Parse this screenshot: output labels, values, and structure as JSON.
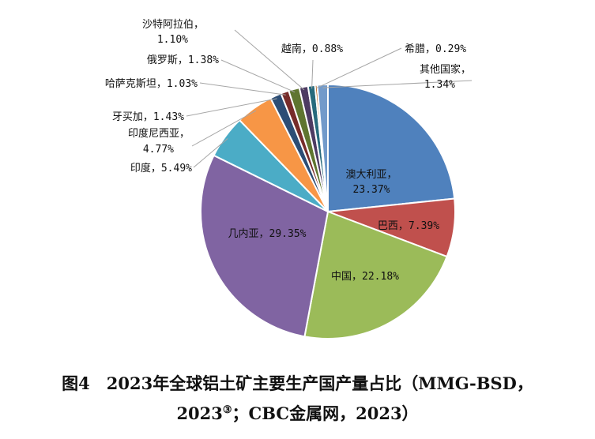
{
  "chart_data": {
    "type": "pie",
    "title": "图4　2023年全球铝土矿主要生产国产量占比（MMG-BSD，",
    "title_line2": "2023",
    "title_sup": "③",
    "title_line2_end": "；CBC金属网，2023）",
    "slices": [
      {
        "label": "澳大利亚，",
        "value": 23.37,
        "value_text": "23.37%",
        "color": "#4f81bd"
      },
      {
        "label": "巴西，",
        "value": 7.39,
        "value_text": "7.39%",
        "color": "#c0504d"
      },
      {
        "label": "中国，",
        "value": 22.18,
        "value_text": "22.18%",
        "color": "#9bbb59"
      },
      {
        "label": "几内亚，",
        "value": 29.35,
        "value_text": "29.35%",
        "color": "#8064a2"
      },
      {
        "label": "印度，",
        "value": 5.49,
        "value_text": "5.49%",
        "color": "#4bacc6"
      },
      {
        "label": "印度尼西亚，",
        "value": 4.77,
        "value_text": "4.77%",
        "color": "#f79646"
      },
      {
        "label": "牙买加，",
        "value": 1.43,
        "value_text": "1.43%",
        "color": "#2c4d75"
      },
      {
        "label": "哈萨克斯坦，",
        "value": 1.03,
        "value_text": "1.03%",
        "color": "#772c2a"
      },
      {
        "label": "俄罗斯，",
        "value": 1.38,
        "value_text": "1.38%",
        "color": "#5f7530"
      },
      {
        "label": "沙特阿拉伯，",
        "value": 1.1,
        "value_text": "1.10%",
        "color": "#4d3b62"
      },
      {
        "label": "越南，",
        "value": 0.88,
        "value_text": "0.88%",
        "color": "#276a7c"
      },
      {
        "label": "希腊，",
        "value": 0.29,
        "value_text": "0.29%",
        "color": "#b65708"
      },
      {
        "label": "其他国家，",
        "value": 1.34,
        "value_text": "1.34%",
        "color": "#729aca"
      }
    ]
  }
}
